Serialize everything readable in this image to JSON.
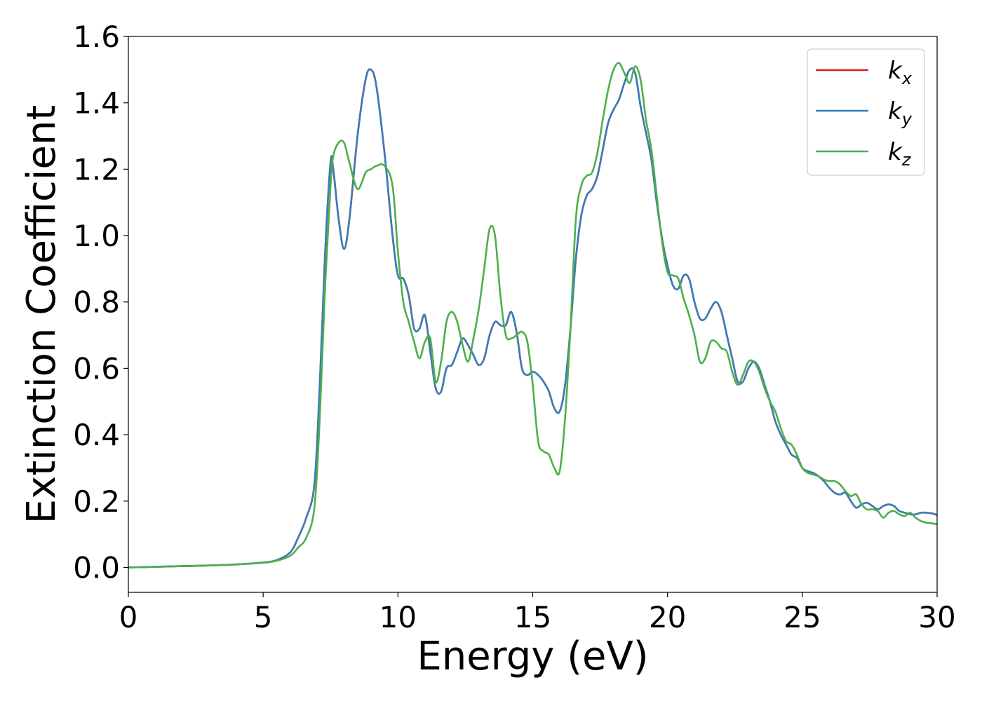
{
  "chart_data": {
    "type": "line",
    "title": "",
    "xlabel": "Energy (eV)",
    "ylabel": "Extinction Coefficient",
    "xlim": [
      0,
      30
    ],
    "ylim": [
      -0.075,
      1.6
    ],
    "xticks": [
      0,
      5,
      10,
      15,
      20,
      25,
      30
    ],
    "xtick_labels": [
      "0",
      "5",
      "10",
      "15",
      "20",
      "25",
      "30"
    ],
    "yticks": [
      0.0,
      0.2,
      0.4,
      0.6,
      0.8,
      1.0,
      1.2,
      1.4,
      1.6
    ],
    "ytick_labels": [
      "0.0",
      "0.2",
      "0.4",
      "0.6",
      "0.8",
      "1.0",
      "1.2",
      "1.4",
      "1.6"
    ],
    "grid": false,
    "legend_position": "top-right",
    "x": [
      0,
      1,
      2,
      3,
      4,
      5,
      5.5,
      6,
      6.3,
      6.6,
      6.9,
      7.1,
      7.3,
      7.5,
      7.6,
      7.8,
      8.0,
      8.2,
      8.5,
      8.8,
      9.0,
      9.2,
      9.5,
      9.8,
      10.0,
      10.2,
      10.4,
      10.6,
      10.8,
      11.0,
      11.2,
      11.4,
      11.6,
      11.8,
      12.0,
      12.2,
      12.4,
      12.6,
      12.8,
      13.0,
      13.2,
      13.4,
      13.6,
      13.8,
      14.0,
      14.2,
      14.4,
      14.6,
      14.8,
      15.0,
      15.2,
      15.4,
      15.6,
      15.8,
      16.0,
      16.2,
      16.4,
      16.6,
      16.8,
      17.0,
      17.2,
      17.4,
      17.6,
      17.8,
      18.0,
      18.2,
      18.4,
      18.6,
      18.8,
      19.0,
      19.2,
      19.4,
      19.6,
      19.8,
      20.0,
      20.2,
      20.4,
      20.6,
      20.8,
      21.0,
      21.2,
      21.4,
      21.6,
      21.8,
      22.0,
      22.2,
      22.4,
      22.6,
      22.8,
      23.0,
      23.2,
      23.4,
      23.6,
      23.8,
      24.0,
      24.2,
      24.4,
      24.6,
      24.8,
      25.0,
      25.2,
      25.4,
      25.6,
      25.8,
      26.0,
      26.2,
      26.4,
      26.6,
      26.8,
      27.0,
      27.2,
      27.4,
      27.6,
      27.8,
      28.0,
      28.2,
      28.4,
      28.6,
      28.8,
      29.0,
      29.2,
      29.4,
      29.6,
      29.8,
      30.0
    ],
    "series": [
      {
        "name": "k",
        "subscript": "x",
        "color": "#e41a1c",
        "values": [
          0.0,
          0.002,
          0.004,
          0.006,
          0.009,
          0.015,
          0.022,
          0.045,
          0.09,
          0.15,
          0.25,
          0.55,
          0.95,
          1.22,
          1.2,
          1.05,
          0.96,
          1.05,
          1.3,
          1.47,
          1.5,
          1.45,
          1.25,
          1.0,
          0.88,
          0.87,
          0.82,
          0.72,
          0.72,
          0.76,
          0.65,
          0.54,
          0.53,
          0.6,
          0.61,
          0.65,
          0.69,
          0.67,
          0.64,
          0.61,
          0.63,
          0.7,
          0.74,
          0.73,
          0.73,
          0.77,
          0.71,
          0.6,
          0.58,
          0.59,
          0.58,
          0.56,
          0.53,
          0.48,
          0.47,
          0.55,
          0.72,
          0.93,
          1.06,
          1.12,
          1.14,
          1.18,
          1.26,
          1.34,
          1.38,
          1.41,
          1.46,
          1.5,
          1.49,
          1.39,
          1.31,
          1.23,
          1.1,
          0.99,
          0.91,
          0.85,
          0.84,
          0.88,
          0.87,
          0.8,
          0.75,
          0.75,
          0.78,
          0.8,
          0.77,
          0.7,
          0.63,
          0.56,
          0.56,
          0.6,
          0.62,
          0.6,
          0.55,
          0.5,
          0.44,
          0.4,
          0.37,
          0.34,
          0.33,
          0.3,
          0.29,
          0.285,
          0.275,
          0.26,
          0.24,
          0.225,
          0.22,
          0.225,
          0.2,
          0.18,
          0.19,
          0.195,
          0.185,
          0.175,
          0.185,
          0.19,
          0.185,
          0.17,
          0.165,
          0.16,
          0.16,
          0.165,
          0.165,
          0.163,
          0.158
        ]
      },
      {
        "name": "k",
        "subscript": "y",
        "color": "#377eb8",
        "values": [
          0.0,
          0.002,
          0.004,
          0.006,
          0.009,
          0.015,
          0.022,
          0.045,
          0.09,
          0.15,
          0.25,
          0.55,
          0.95,
          1.22,
          1.2,
          1.05,
          0.96,
          1.05,
          1.3,
          1.47,
          1.5,
          1.45,
          1.25,
          1.0,
          0.88,
          0.87,
          0.82,
          0.72,
          0.72,
          0.76,
          0.65,
          0.54,
          0.53,
          0.6,
          0.61,
          0.65,
          0.69,
          0.67,
          0.64,
          0.61,
          0.63,
          0.7,
          0.74,
          0.73,
          0.73,
          0.77,
          0.71,
          0.6,
          0.58,
          0.59,
          0.58,
          0.56,
          0.53,
          0.48,
          0.47,
          0.55,
          0.72,
          0.93,
          1.06,
          1.12,
          1.14,
          1.18,
          1.26,
          1.34,
          1.38,
          1.41,
          1.46,
          1.5,
          1.49,
          1.39,
          1.31,
          1.23,
          1.1,
          0.99,
          0.91,
          0.85,
          0.84,
          0.88,
          0.87,
          0.8,
          0.75,
          0.75,
          0.78,
          0.8,
          0.77,
          0.7,
          0.63,
          0.56,
          0.56,
          0.6,
          0.62,
          0.6,
          0.55,
          0.5,
          0.44,
          0.4,
          0.37,
          0.34,
          0.33,
          0.3,
          0.29,
          0.285,
          0.275,
          0.26,
          0.24,
          0.225,
          0.22,
          0.225,
          0.2,
          0.18,
          0.19,
          0.195,
          0.185,
          0.175,
          0.185,
          0.19,
          0.185,
          0.17,
          0.165,
          0.16,
          0.16,
          0.165,
          0.165,
          0.163,
          0.158
        ]
      },
      {
        "name": "k",
        "subscript": "z",
        "color": "#4daf4a",
        "values": [
          0.0,
          0.002,
          0.004,
          0.006,
          0.009,
          0.014,
          0.02,
          0.035,
          0.06,
          0.09,
          0.18,
          0.45,
          0.85,
          1.15,
          1.24,
          1.28,
          1.28,
          1.22,
          1.14,
          1.19,
          1.2,
          1.21,
          1.21,
          1.15,
          0.95,
          0.8,
          0.74,
          0.68,
          0.63,
          0.68,
          0.69,
          0.56,
          0.62,
          0.74,
          0.77,
          0.74,
          0.67,
          0.62,
          0.69,
          0.78,
          0.9,
          1.02,
          1.0,
          0.82,
          0.7,
          0.69,
          0.7,
          0.71,
          0.68,
          0.55,
          0.38,
          0.35,
          0.34,
          0.3,
          0.29,
          0.45,
          0.72,
          1.05,
          1.15,
          1.18,
          1.19,
          1.25,
          1.35,
          1.44,
          1.5,
          1.52,
          1.49,
          1.46,
          1.51,
          1.47,
          1.35,
          1.26,
          1.12,
          0.98,
          0.89,
          0.88,
          0.87,
          0.81,
          0.76,
          0.7,
          0.62,
          0.63,
          0.68,
          0.68,
          0.66,
          0.65,
          0.59,
          0.55,
          0.58,
          0.62,
          0.62,
          0.59,
          0.54,
          0.5,
          0.47,
          0.42,
          0.38,
          0.37,
          0.34,
          0.3,
          0.285,
          0.28,
          0.275,
          0.265,
          0.26,
          0.26,
          0.25,
          0.23,
          0.215,
          0.22,
          0.19,
          0.175,
          0.175,
          0.17,
          0.15,
          0.165,
          0.17,
          0.16,
          0.155,
          0.165,
          0.15,
          0.14,
          0.135,
          0.133,
          0.13
        ]
      }
    ]
  }
}
